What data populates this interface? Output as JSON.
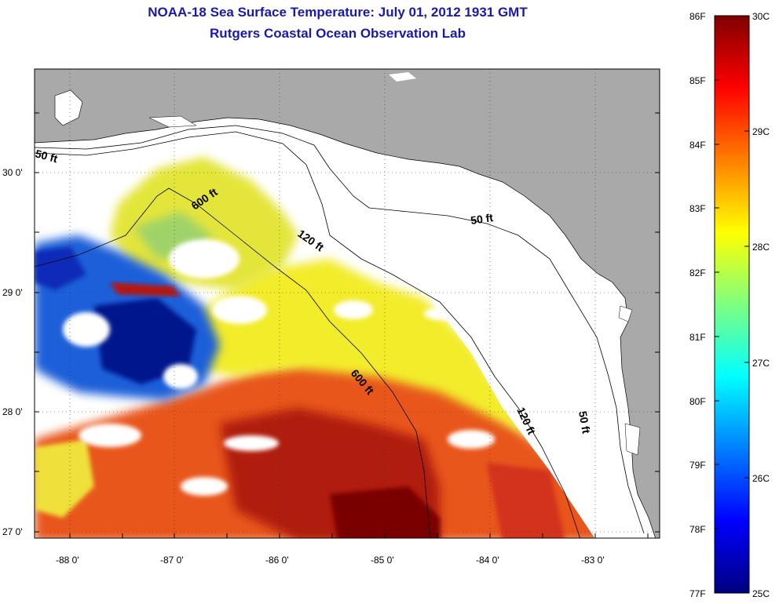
{
  "header": {
    "title": "NOAA-18 Sea Surface Temperature:  July 01, 2012 1931 GMT",
    "subtitle": "Rutgers Coastal Ocean Observation Lab"
  },
  "map": {
    "region": "Eastern Gulf of Mexico / West Florida Shelf",
    "lat_ticks": [
      "30 0'",
      "29 0'",
      "28 0'",
      "27 0'"
    ],
    "lon_ticks": [
      "-88 0'",
      "-87 0'",
      "-86 0'",
      "-85 0'",
      "-84 0'",
      "-83 0'"
    ],
    "contour_labels": {
      "c50_west": "50 ft",
      "c50_north": "50 ft",
      "c50_south": "50 ft",
      "c120_north": "120 ft",
      "c120_south": "120 ft",
      "c600_north": "600 ft",
      "c600_south": "600 ft"
    },
    "colors": {
      "land": "#a9a9a9",
      "no_data": "#ffffff",
      "warm": "#d8321a",
      "hot": "#8b0000",
      "mild": "#f3ec2a",
      "cool": "#1a4ad0",
      "cold": "#00148c"
    }
  },
  "colorbar": {
    "f_labels": [
      "86F",
      "85F",
      "84F",
      "83F",
      "82F",
      "81F",
      "80F",
      "79F",
      "78F",
      "77F"
    ],
    "c_labels": [
      "30C",
      "29C",
      "28C",
      "27C",
      "26C",
      "25C"
    ],
    "stops": [
      "#00007f",
      "#0000ff",
      "#007fff",
      "#00ffff",
      "#7fff7f",
      "#ffff00",
      "#ff7f00",
      "#ff0000",
      "#7f0000"
    ],
    "range_f": [
      77,
      86
    ],
    "range_c": [
      25,
      30
    ]
  }
}
